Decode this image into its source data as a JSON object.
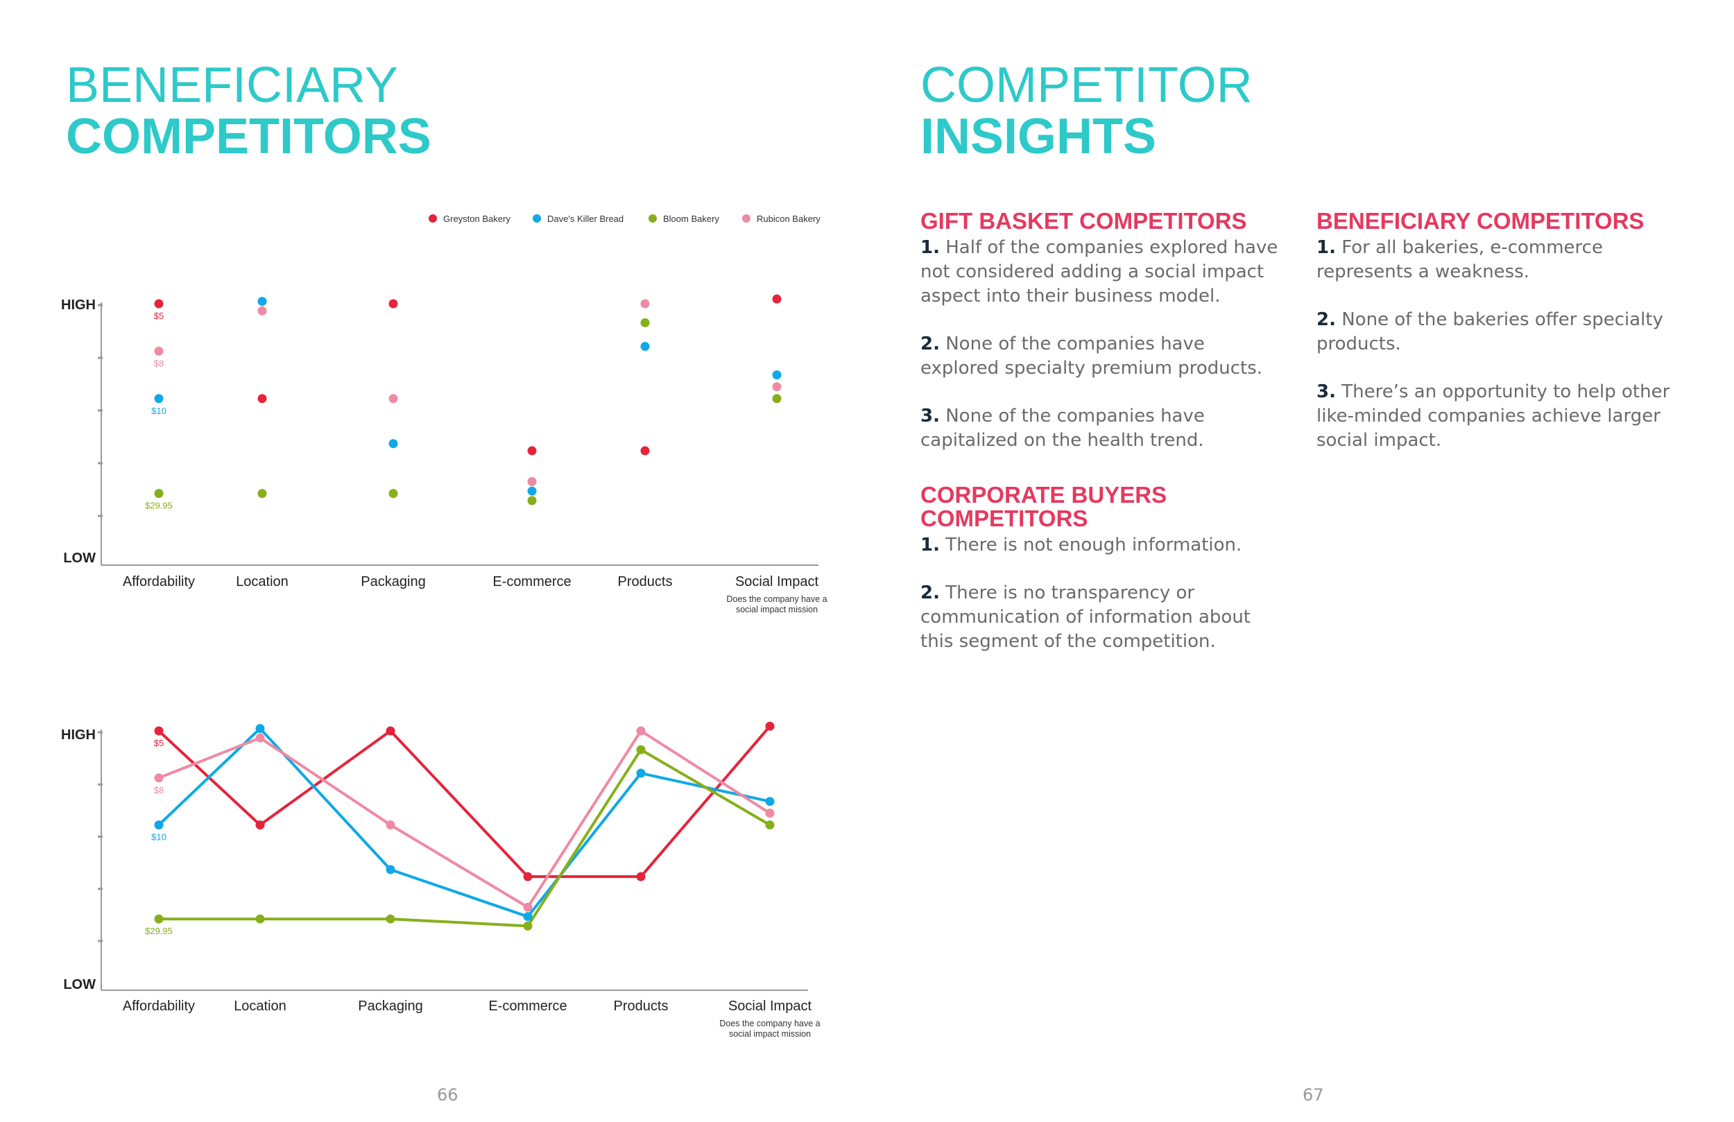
{
  "left_title": {
    "line1": "BENEFICIARY",
    "line2": "COMPETITORS"
  },
  "right_title": {
    "line1": "COMPETITOR",
    "line2": "INSIGHTS"
  },
  "chart_data": [
    {
      "type": "scatter",
      "categories": [
        "Affordability",
        "Location",
        "Packaging",
        "E-commerce",
        "Products",
        "Social Impact"
      ],
      "category_note": {
        "category": "Social Impact",
        "text": [
          "Does the company have a",
          "social impact mission"
        ]
      },
      "ylabels": {
        "high": "HIGH",
        "low": "LOW"
      },
      "ylim": [
        0,
        5
      ],
      "legend_position": "top-right",
      "series": [
        {
          "name": "Greyston Bakery",
          "color": "#e5243b",
          "values": [
            5,
            3,
            5,
            1.9,
            1.9,
            5.1
          ]
        },
        {
          "name": "Dave's Killer Bread",
          "color": "#0ea9e6",
          "values": [
            3,
            5.05,
            2.05,
            1.05,
            4.1,
            3.5
          ]
        },
        {
          "name": "Bloom Bakery",
          "color": "#86b01a",
          "values": [
            1,
            1,
            1,
            0.85,
            4.6,
            3
          ]
        },
        {
          "name": "Rubicon Bakery",
          "color": "#ef8aa3",
          "values": [
            4,
            4.85,
            3,
            1.25,
            5,
            3.25
          ]
        }
      ],
      "point_labels": [
        {
          "series": 0,
          "category": 0,
          "text": "$5"
        },
        {
          "series": 3,
          "category": 0,
          "text": "$8"
        },
        {
          "series": 1,
          "category": 0,
          "text": "$10"
        },
        {
          "series": 2,
          "category": 0,
          "text": "$29.95"
        }
      ]
    },
    {
      "type": "line",
      "categories": [
        "Affordability",
        "Location",
        "Packaging",
        "E-commerce",
        "Products",
        "Social Impact"
      ],
      "category_note": {
        "category": "Social Impact",
        "text": [
          "Does the company have a",
          "social impact mission"
        ]
      },
      "ylabels": {
        "high": "HIGH",
        "low": "LOW"
      },
      "ylim": [
        0,
        5
      ],
      "series": [
        {
          "name": "Greyston Bakery",
          "color": "#e5243b",
          "values": [
            5,
            3,
            5,
            1.9,
            1.9,
            5.1
          ]
        },
        {
          "name": "Dave's Killer Bread",
          "color": "#0ea9e6",
          "values": [
            3,
            5.05,
            2.05,
            1.05,
            4.1,
            3.5
          ]
        },
        {
          "name": "Bloom Bakery",
          "color": "#86b01a",
          "values": [
            1,
            1,
            1,
            0.85,
            4.6,
            3
          ]
        },
        {
          "name": "Rubicon Bakery",
          "color": "#ef8aa3",
          "values": [
            4,
            4.85,
            3,
            1.25,
            5,
            3.25
          ]
        }
      ],
      "point_labels": [
        {
          "series": 0,
          "category": 0,
          "text": "$5"
        },
        {
          "series": 3,
          "category": 0,
          "text": "$8"
        },
        {
          "series": 1,
          "category": 0,
          "text": "$10"
        },
        {
          "series": 2,
          "category": 0,
          "text": "$29.95"
        }
      ]
    }
  ],
  "insights": {
    "gift": {
      "heading": "GIFT BASKET COMPETITORS",
      "items": [
        {
          "num": "1.",
          "text": "Half of the companies explored have not considered adding a social impact aspect into their business model."
        },
        {
          "num": "2.",
          "text": "None of the companies have explored specialty premium products."
        },
        {
          "num": "3.",
          "text": "None of the companies have capitalized on the health trend."
        }
      ]
    },
    "corporate": {
      "heading": "CORPORATE BUYERS COMPETITORS",
      "items": [
        {
          "num": "1.",
          "text": "There is not enough information."
        },
        {
          "num": "2.",
          "text": "There is no transparency or communication of information about this segment of the competition."
        }
      ]
    },
    "beneficiary": {
      "heading": "BENEFICIARY COMPETITORS",
      "items": [
        {
          "num": "1.",
          "text": "For all bakeries, e-commerce represents a weakness."
        },
        {
          "num": "2.",
          "text": "None of the bakeries offer specialty products."
        },
        {
          "num": "3.",
          "text": "There’s an opportunity to help other like-minded companies achieve larger social impact."
        }
      ]
    }
  },
  "page_numbers": {
    "left": "66",
    "right": "67"
  }
}
